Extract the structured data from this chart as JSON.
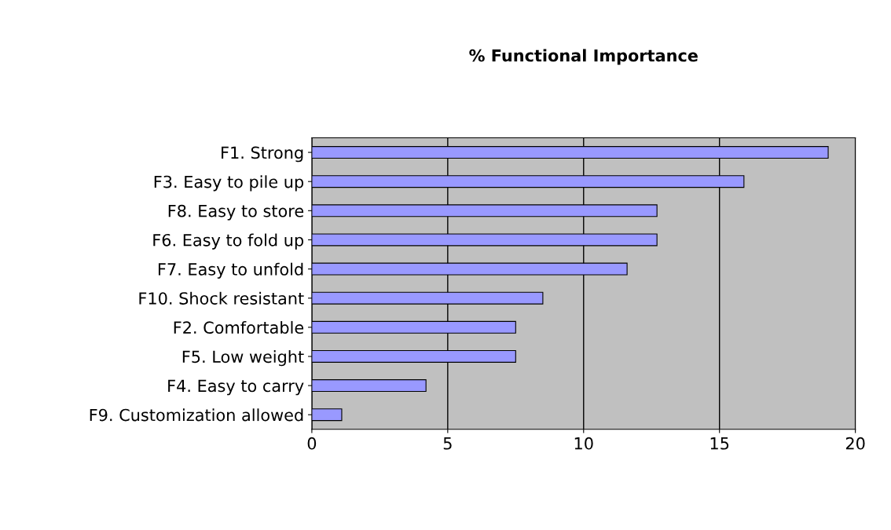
{
  "chart_data": {
    "type": "bar",
    "orientation": "horizontal",
    "title": "% Functional Importance",
    "categories": [
      "F1. Strong",
      "F3. Easy to pile up",
      "F8. Easy to store",
      "F6. Easy to fold up",
      "F7. Easy to unfold",
      "F10. Shock resistant",
      "F2. Comfortable",
      "F5. Low weight",
      "F4. Easy to carry",
      "F9. Customization allowed"
    ],
    "values": [
      19.0,
      15.9,
      12.7,
      12.7,
      11.6,
      8.5,
      7.5,
      7.5,
      4.2,
      1.1
    ],
    "color": "#9999ff",
    "xlim": [
      0,
      20
    ],
    "xticks": [
      0,
      5,
      10,
      15,
      20
    ],
    "grid": "x",
    "legend": false
  }
}
